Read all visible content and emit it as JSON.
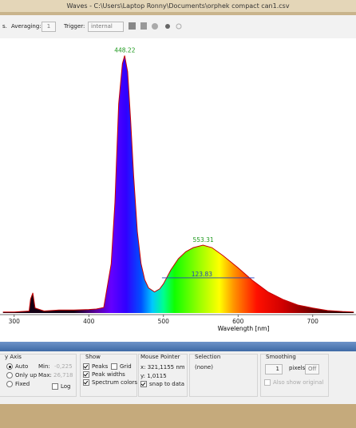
{
  "window": {
    "title": "Waves  -  C:\\Users\\Laptop Ronny\\Documents\\orphek compact can1.csv"
  },
  "toolbar": {
    "unit_fragment": "s.",
    "averaging_label": "Averaging:",
    "averaging": "1",
    "trigger_label": "Trigger:",
    "trigger": "internal"
  },
  "chart_data": {
    "type": "line",
    "x_label": "Wavelength [nm]",
    "x": [
      285,
      300,
      320,
      322,
      325,
      328,
      340,
      360,
      380,
      400,
      410,
      420,
      430,
      435,
      440,
      445,
      448,
      452,
      456,
      460,
      465,
      470,
      475,
      480,
      488,
      495,
      500,
      510,
      520,
      530,
      540,
      553,
      565,
      580,
      600,
      620,
      640,
      660,
      680,
      700,
      720,
      740,
      755
    ],
    "values": [
      0.1,
      0.1,
      0.2,
      1.4,
      2.0,
      0.5,
      0.2,
      0.3,
      0.3,
      0.35,
      0.4,
      0.55,
      4.9,
      11,
      20.8,
      24.8,
      25.6,
      24,
      19.2,
      13.7,
      8.1,
      4.9,
      3.3,
      2.5,
      2.1,
      2.4,
      2.9,
      4.3,
      5.4,
      6.1,
      6.5,
      6.75,
      6.5,
      5.7,
      4.5,
      3.2,
      2.1,
      1.35,
      0.8,
      0.5,
      0.25,
      0.15,
      0.1
    ],
    "color": "#c80000",
    "spectrum_colors": true,
    "xlim": [
      281,
      758
    ],
    "xticks": [
      300,
      400,
      500,
      600,
      700
    ],
    "ylim": [
      0,
      27
    ],
    "peaks": [
      {
        "wavelength": 448.22,
        "height": 25.6
      },
      {
        "wavelength": 553.31,
        "height": 6.75
      }
    ],
    "peak_widths": [
      {
        "width": 123.83,
        "from": 498,
        "height": 3.5
      }
    ]
  },
  "panel": {
    "y_axis": {
      "title": "y Axis",
      "options": [
        {
          "label": "Auto",
          "checked": true
        },
        {
          "label": "Only up",
          "checked": false
        },
        {
          "label": "Fixed",
          "checked": false
        }
      ],
      "min_label": "Min:",
      "min": "-0,225",
      "max_label": "Max:",
      "max": "26,718",
      "log": {
        "label": "Log",
        "checked": false
      }
    },
    "show": {
      "title": "Show",
      "peaks": {
        "label": "Peaks",
        "checked": true
      },
      "grid": {
        "label": "Grid",
        "checked": false
      },
      "peak_widths": {
        "label": "Peak widths",
        "checked": true
      },
      "spectrum_colors": {
        "label": "Spectrum colors",
        "checked": true
      }
    },
    "mouse_pointer": {
      "title": "Mouse Pointer",
      "x": "x: 321,1155 nm",
      "y": "y: 1,0115",
      "snap": {
        "label": "snap to data",
        "checked": true
      }
    },
    "selection": {
      "title": "Selection",
      "value": "(none)"
    },
    "smoothing": {
      "title": "Smoothing",
      "pixels": "1",
      "unit": "pixels",
      "button": "Off",
      "also_original": {
        "label": "Also show original",
        "checked": false
      }
    }
  }
}
